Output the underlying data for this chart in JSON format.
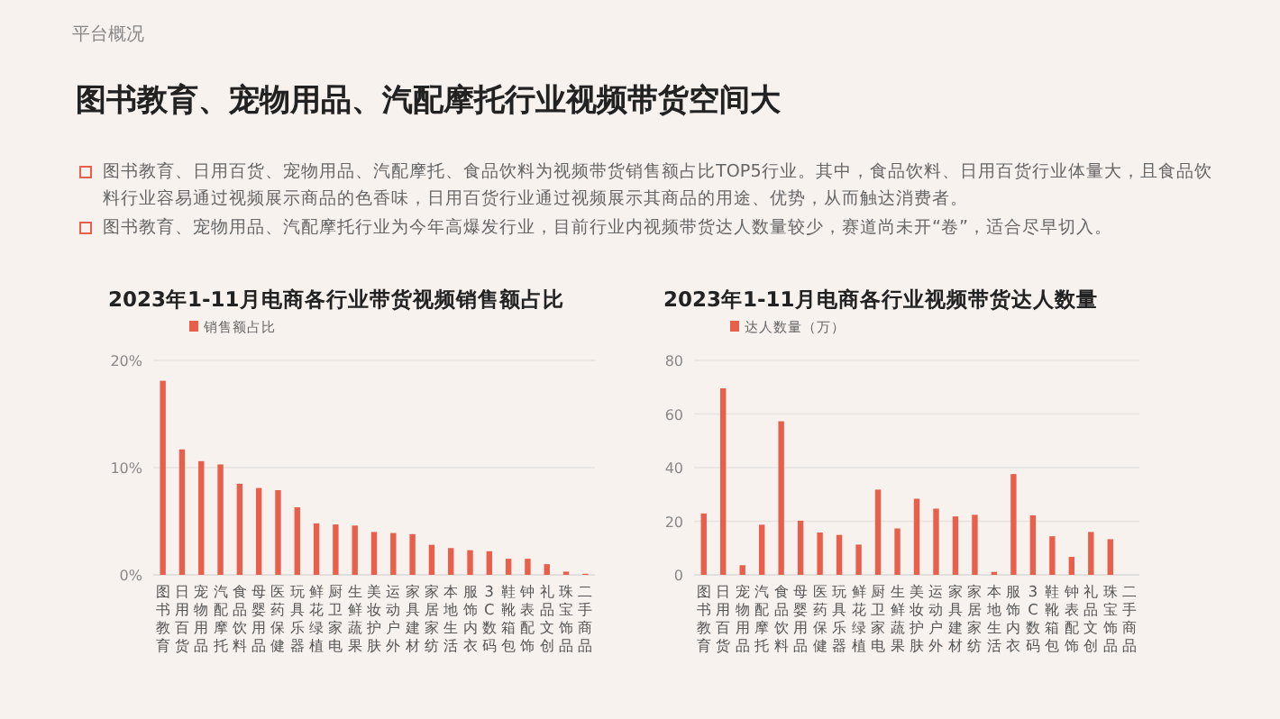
{
  "chart_data": [
    {
      "type": "other",
      "title": "图书教育、宠物用品、汽配摩托行业视频带货空间大",
      "annotations": [
        "平台概况",
        "图书教育、日用百货、宠物用品、汽配摩托、食品饮料为视频带货销售额占比TOP5行业。其中，食品饮料、日用百货行业体量大，且食品饮料行业容易通过视频展示商品的色香味，日用百货行业通过视频展示其商品的用途、优势，从而触达消费者。",
        "图书教育、宠物用品、汽配摩托行业为今年高爆发行业，目前行业内视频带货达人数量较少，赛道尚未开“卷”，适合尽早切入。"
      ]
    },
    {
      "type": "bar",
      "title": "2023年1-11月电商各行业带货视频销售额占比",
      "categories": [
        "图书教育",
        "日用百货",
        "宠物用品",
        "汽配摩托",
        "食品饮料",
        "母婴用品",
        "医药保健",
        "玩具乐器",
        "鲜花绿植",
        "厨卫家电",
        "生鲜蔬果",
        "美妆护肤",
        "运动户外",
        "家具建材",
        "家居家纺",
        "本地生活",
        "服饰内衣",
        "3C数码",
        "鞋靴箱包",
        "钟表配饰",
        "礼品文创",
        "珠宝饰品",
        "二手商品"
      ],
      "series": [
        {
          "name": "销售额占比",
          "color": "#e8604c",
          "values": [
            18.1,
            11.7,
            10.6,
            10.3,
            8.5,
            8.1,
            7.9,
            6.3,
            4.8,
            4.7,
            4.6,
            4.0,
            3.9,
            3.8,
            2.8,
            2.5,
            2.3,
            2.2,
            1.5,
            1.5,
            1.0,
            0.3,
            0.1
          ]
        }
      ],
      "ylim": [
        0,
        20
      ],
      "yticks": [
        {
          "value": 0,
          "label": "0%"
        },
        {
          "value": 10,
          "label": "10%"
        },
        {
          "value": 20,
          "label": "20%"
        }
      ],
      "grid": "y",
      "legend": "top left"
    },
    {
      "type": "bar",
      "title": "2023年1-11月电商各行业视频带货达人数量",
      "categories": [
        "图书教育",
        "日用百货",
        "宠物用品",
        "汽配摩托",
        "食品饮料",
        "母婴用品",
        "医药保健",
        "玩具乐器",
        "鲜花绿植",
        "厨卫家电",
        "生鲜蔬果",
        "美妆护肤",
        "运动户外",
        "家具建材",
        "家居家纺",
        "本地生活",
        "服饰内衣",
        "3C数码",
        "鞋靴箱包",
        "钟表配饰",
        "礼品文创",
        "珠宝饰品",
        "二手商品"
      ],
      "series": [
        {
          "name": "达人数量（万）",
          "color": "#e8604c",
          "values": [
            22.9,
            69.6,
            3.6,
            18.7,
            57.3,
            20.2,
            15.8,
            14.9,
            11.3,
            31.8,
            17.3,
            28.4,
            24.7,
            21.8,
            22.4,
            1.1,
            37.6,
            22.2,
            14.4,
            6.7,
            16,
            13.3,
            0
          ]
        }
      ],
      "ylim": [
        0,
        80
      ],
      "yticks": [
        0,
        20,
        40,
        60,
        80
      ],
      "grid": "y",
      "legend": "top left"
    }
  ]
}
